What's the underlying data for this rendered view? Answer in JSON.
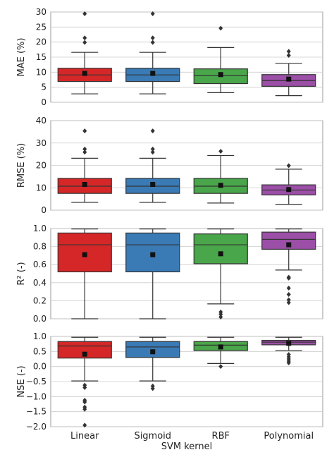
{
  "chart_data": [
    {
      "type": "box",
      "ylabel": "MAE (%)",
      "ylim": [
        0,
        30
      ],
      "yticks": [
        0,
        5,
        10,
        15,
        20,
        25,
        30
      ],
      "categories": [
        "Linear",
        "Sigmoid",
        "RBF",
        "Polynomial"
      ],
      "boxes": [
        {
          "lo": 2.8,
          "q1": 6.9,
          "med": 9.1,
          "q3": 11.3,
          "hi": 16.6,
          "mean": 9.6,
          "outliers": [
            19.9,
            21.4,
            29.4
          ]
        },
        {
          "lo": 2.8,
          "q1": 6.9,
          "med": 9.1,
          "q3": 11.3,
          "hi": 16.6,
          "mean": 9.6,
          "outliers": [
            19.9,
            21.4,
            29.4
          ]
        },
        {
          "lo": 3.2,
          "q1": 6.2,
          "med": 8.8,
          "q3": 11.1,
          "hi": 18.2,
          "mean": 9.2,
          "outliers": [
            24.6
          ]
        },
        {
          "lo": 2.2,
          "q1": 5.3,
          "med": 7.2,
          "q3": 9.2,
          "hi": 12.9,
          "mean": 7.7,
          "outliers": [
            15.6,
            16.9
          ]
        }
      ]
    },
    {
      "type": "box",
      "ylabel": "RMSE (%)",
      "ylim": [
        0,
        40
      ],
      "yticks": [
        0,
        10,
        20,
        30,
        40
      ],
      "categories": [
        "Linear",
        "Sigmoid",
        "RBF",
        "Polynomial"
      ],
      "boxes": [
        {
          "lo": 3.5,
          "q1": 7.5,
          "med": 10.7,
          "q3": 14.2,
          "hi": 23.2,
          "mean": 11.5,
          "outliers": [
            25.9,
            27.3,
            35.4
          ]
        },
        {
          "lo": 3.5,
          "q1": 7.5,
          "med": 10.7,
          "q3": 14.2,
          "hi": 23.2,
          "mean": 11.5,
          "outliers": [
            25.9,
            27.3,
            35.4
          ]
        },
        {
          "lo": 3.2,
          "q1": 7.5,
          "med": 10.7,
          "q3": 14.2,
          "hi": 24.4,
          "mean": 11.1,
          "outliers": [
            26.3
          ]
        },
        {
          "lo": 2.6,
          "q1": 6.8,
          "med": 9.0,
          "q3": 11.3,
          "hi": 18.3,
          "mean": 9.2,
          "outliers": [
            19.9
          ]
        }
      ]
    },
    {
      "type": "box",
      "ylabel": "R² (-)",
      "ylim": [
        0,
        1.0
      ],
      "yticks": [
        0.0,
        0.2,
        0.4,
        0.6,
        0.8,
        1.0
      ],
      "tick_labels": [
        "0.0",
        "0.2",
        "0.4",
        "0.6",
        "0.8",
        "1.0"
      ],
      "categories": [
        "Linear",
        "Sigmoid",
        "RBF",
        "Polynomial"
      ],
      "boxes": [
        {
          "lo": 0.0,
          "q1": 0.52,
          "med": 0.82,
          "q3": 0.95,
          "hi": 0.995,
          "mean": 0.71,
          "outliers": []
        },
        {
          "lo": 0.0,
          "q1": 0.52,
          "med": 0.82,
          "q3": 0.95,
          "hi": 0.995,
          "mean": 0.71,
          "outliers": []
        },
        {
          "lo": 0.165,
          "q1": 0.61,
          "med": 0.82,
          "q3": 0.94,
          "hi": 0.995,
          "mean": 0.72,
          "outliers": [
            0.02,
            0.05,
            0.075
          ]
        },
        {
          "lo": 0.54,
          "q1": 0.77,
          "med": 0.88,
          "q3": 0.96,
          "hi": 0.995,
          "mean": 0.82,
          "outliers": [
            0.18,
            0.21,
            0.27,
            0.34,
            0.45,
            0.46
          ]
        }
      ]
    },
    {
      "type": "box",
      "ylabel": "NSE (-)",
      "xlabel": "SVM kernel",
      "ylim": [
        -2.0,
        1.0
      ],
      "yticks": [
        -2.0,
        -1.5,
        -1.0,
        -0.5,
        0.0,
        0.5,
        1.0
      ],
      "tick_labels": [
        "−2.0",
        "−1.5",
        "−1.0",
        "−0.5",
        "0.0",
        "0.5",
        "1.0"
      ],
      "categories": [
        "Linear",
        "Sigmoid",
        "RBF",
        "Polynomial"
      ],
      "boxes": [
        {
          "lo": -0.48,
          "q1": 0.28,
          "med": 0.68,
          "q3": 0.83,
          "hi": 0.97,
          "mean": 0.41,
          "outliers": [
            -0.62,
            -0.7,
            -1.12,
            -1.18,
            -1.35,
            -1.42,
            -1.95
          ]
        },
        {
          "lo": -0.48,
          "q1": 0.3,
          "med": 0.65,
          "q3": 0.83,
          "hi": 0.97,
          "mean": 0.49,
          "outliers": [
            -0.65,
            -0.73
          ]
        },
        {
          "lo": 0.1,
          "q1": 0.53,
          "med": 0.71,
          "q3": 0.83,
          "hi": 0.97,
          "mean": 0.65,
          "outliers": [
            0.0
          ]
        },
        {
          "lo": 0.53,
          "q1": 0.72,
          "med": 0.81,
          "q3": 0.87,
          "hi": 0.97,
          "mean": 0.77,
          "outliers": [
            0.12,
            0.18,
            0.25,
            0.32,
            0.4
          ]
        }
      ]
    }
  ],
  "colors": [
    "#d62728",
    "#3a7ab5",
    "#4aa64a",
    "#9b4fa6"
  ]
}
